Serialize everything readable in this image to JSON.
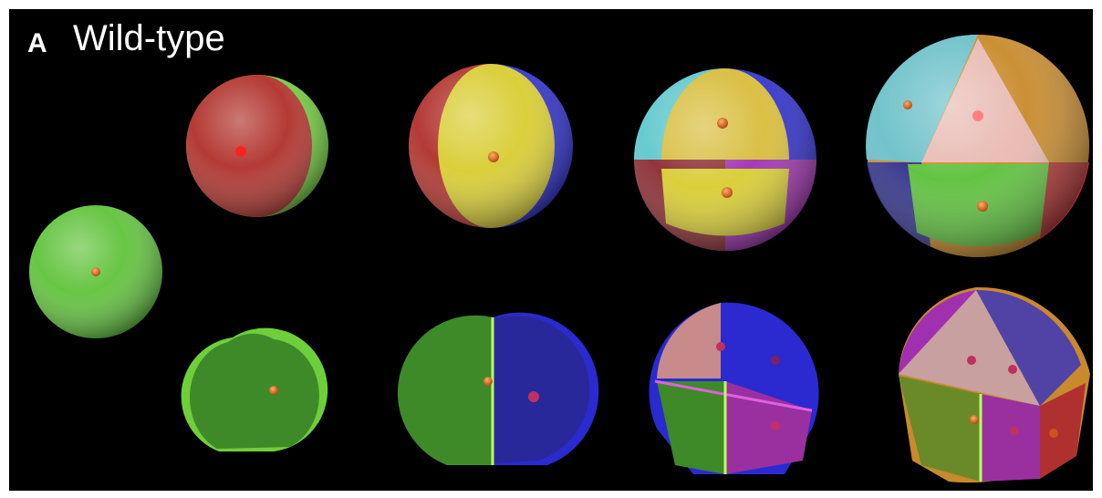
{
  "panel": {
    "label": "A",
    "title": "Wild-type"
  }
}
